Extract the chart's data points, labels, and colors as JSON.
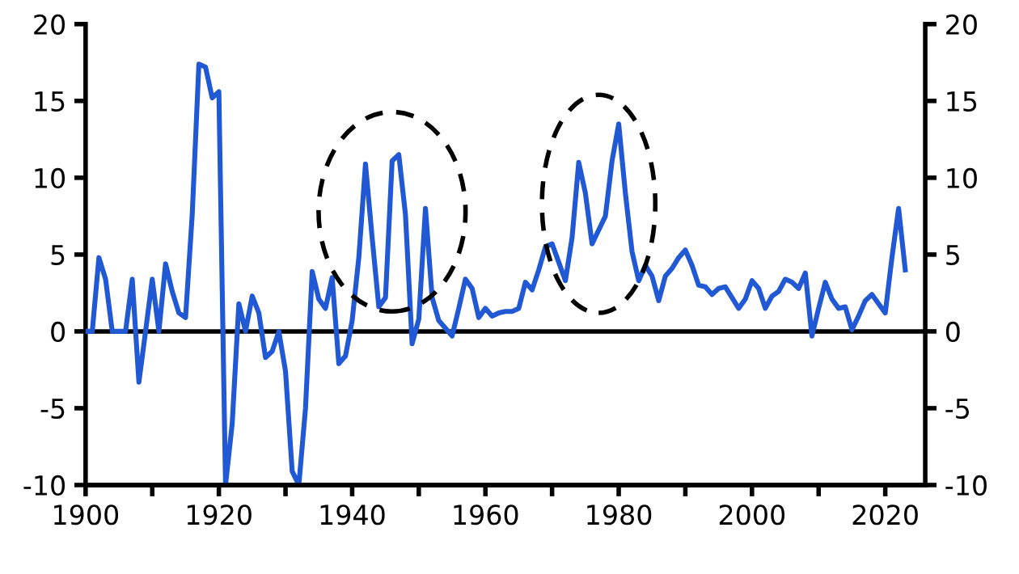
{
  "chart_data": {
    "type": "line",
    "x": [
      1900,
      1901,
      1902,
      1903,
      1904,
      1905,
      1906,
      1907,
      1908,
      1909,
      1910,
      1911,
      1912,
      1913,
      1914,
      1915,
      1916,
      1917,
      1918,
      1919,
      1920,
      1921,
      1922,
      1923,
      1924,
      1925,
      1926,
      1927,
      1928,
      1929,
      1930,
      1931,
      1932,
      1933,
      1934,
      1935,
      1936,
      1937,
      1938,
      1939,
      1940,
      1941,
      1942,
      1943,
      1944,
      1945,
      1946,
      1947,
      1948,
      1949,
      1950,
      1951,
      1952,
      1953,
      1954,
      1955,
      1956,
      1957,
      1958,
      1959,
      1960,
      1961,
      1962,
      1963,
      1964,
      1965,
      1966,
      1967,
      1968,
      1969,
      1970,
      1971,
      1972,
      1973,
      1974,
      1975,
      1976,
      1977,
      1978,
      1979,
      1980,
      1981,
      1982,
      1983,
      1984,
      1985,
      1986,
      1987,
      1988,
      1989,
      1990,
      1991,
      1992,
      1993,
      1994,
      1995,
      1996,
      1997,
      1998,
      1999,
      2000,
      2001,
      2002,
      2003,
      2004,
      2005,
      2006,
      2007,
      2008,
      2009,
      2010,
      2011,
      2012,
      2013,
      2014,
      2015,
      2016,
      2017,
      2018,
      2019,
      2020,
      2021,
      2022,
      2023
    ],
    "series": [
      {
        "color": "#2158d4",
        "values": [
          0,
          0,
          4.8,
          3.4,
          0,
          0,
          0,
          3.4,
          -3.3,
          0,
          3.4,
          0,
          4.4,
          2.6,
          1.2,
          0.9,
          7.6,
          17.4,
          17.2,
          15.2,
          15.6,
          -10,
          -6,
          1.8,
          0,
          2.3,
          1.2,
          -1.7,
          -1.3,
          0,
          -2.6,
          -9.1,
          -10,
          -5,
          3.9,
          2.1,
          1.5,
          3.5,
          -2.1,
          -1.6,
          0.7,
          4.8,
          10.9,
          6.1,
          1.6,
          2.2,
          11.1,
          11.5,
          7.6,
          -0.8,
          0.8,
          8,
          2.2,
          0.7,
          0.2,
          -0.3,
          1.5,
          3.4,
          2.8,
          0.9,
          1.5,
          1,
          1.2,
          1.3,
          1.3,
          1.5,
          3.2,
          2.7,
          4,
          5.5,
          5.7,
          4.5,
          3.3,
          6.1,
          11,
          9,
          5.7,
          6.6,
          7.5,
          11.1,
          13.5,
          9,
          5.2,
          3.3,
          4.3,
          3.6,
          2,
          3.6,
          4.1,
          4.8,
          5.3,
          4.3,
          3,
          2.9,
          2.4,
          2.8,
          2.9,
          2.2,
          1.5,
          2.1,
          3.3,
          2.8,
          1.5,
          2.3,
          2.6,
          3.4,
          3.2,
          2.8,
          3.8,
          -0.3,
          1.5,
          3.2,
          2.1,
          1.5,
          1.6,
          0.1,
          1,
          2,
          2.4,
          1.8,
          1.2,
          4.8,
          8,
          4
        ]
      }
    ],
    "xlim": [
      1900,
      2026
    ],
    "xticks": [
      1900,
      {
        "value": 1910,
        "label": null
      },
      1920,
      {
        "value": 1930,
        "label": null
      },
      1940,
      {
        "value": 1950,
        "label": null
      },
      1960,
      {
        "value": 1970,
        "label": null
      },
      1980,
      {
        "value": 1990,
        "label": null
      },
      2000,
      {
        "value": 2010,
        "label": null
      },
      2020
    ],
    "ylim": [
      -10,
      20
    ],
    "yticks": [
      -10,
      -5,
      0,
      5,
      10,
      15,
      20
    ],
    "y2lim": [
      -10,
      20
    ],
    "y2ticks": [
      -10,
      -5,
      0,
      5,
      10,
      15,
      20
    ],
    "ref_lines": [
      {
        "axis": "y",
        "value": 0,
        "color": "#000000"
      }
    ],
    "grid": false,
    "legend": false,
    "marker": "none",
    "line_style": "solid"
  }
}
